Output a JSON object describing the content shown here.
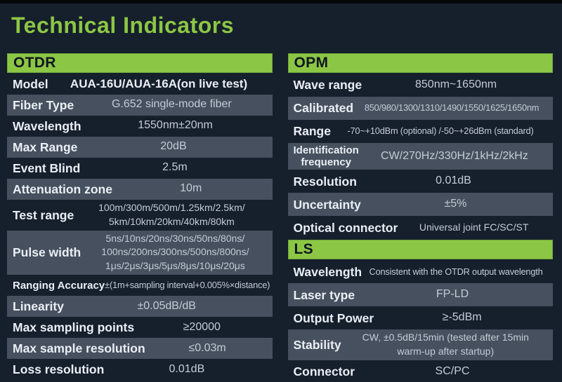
{
  "title": "Technical Indicators",
  "colors": {
    "background": "#161f2c",
    "top_edge": "#05070a",
    "accent_green": "#8cc645",
    "header_text": "#0e1620",
    "row_shaded": "#46505e",
    "label_text": "#eaeff5",
    "value_text": "#c3ccd7"
  },
  "columns": [
    {
      "name": "otdr",
      "blocks": [
        {
          "type": "header",
          "text": "OTDR"
        },
        {
          "type": "row",
          "label": "Model",
          "value": "AUA-16U/AUA-16A(on live test)",
          "shaded": false,
          "value_bold": true
        },
        {
          "type": "row",
          "label": "Fiber Type",
          "value": "G.652 single-mode fiber",
          "shaded": true
        },
        {
          "type": "row",
          "label": "Wavelength",
          "value": "1550nm±20nm",
          "shaded": false
        },
        {
          "type": "row",
          "label": "Max Range",
          "value": "20dB",
          "shaded": true
        },
        {
          "type": "row",
          "label": "Event Blind",
          "value": "2.5m",
          "shaded": false
        },
        {
          "type": "row",
          "label": "Attenuation zone",
          "value": "10m",
          "shaded": true
        },
        {
          "type": "row",
          "label": "Test range",
          "value": "100m/300m/500m/1.25km/2.5km/\n5km/10km/20km/40km/80km",
          "shaded": false,
          "value_size": "small"
        },
        {
          "type": "row",
          "label": "Pulse width",
          "value": "5ns/10ns/20ns/30ns/50ns/80ns/\n100ns/200ns/300ns/500ns/800ns/\n1μs/2μs/3μs/5μs/8μs/10μs/20μs",
          "shaded": true,
          "value_size": "small"
        },
        {
          "type": "row",
          "label": "Ranging Accuracy",
          "value": "±(1m+sampling interval+0.005%×distance)",
          "shaded": false,
          "label_size": "small",
          "value_size": "xsmall"
        },
        {
          "type": "row",
          "label": "Linearity",
          "value": "±0.05dB/dB",
          "shaded": true
        },
        {
          "type": "row",
          "label": "Max sampling points",
          "value": "≥20000",
          "shaded": false
        },
        {
          "type": "row",
          "label": "Max sample resolution",
          "value": "≤0.03m",
          "shaded": true
        },
        {
          "type": "row",
          "label": "Loss resolution",
          "value": "0.01dB",
          "shaded": false
        }
      ]
    },
    {
      "name": "opm-ls",
      "blocks": [
        {
          "type": "header",
          "text": "OPM"
        },
        {
          "type": "row",
          "label": "Wave range",
          "value": "850nm~1650nm",
          "shaded": false
        },
        {
          "type": "row",
          "label": "Calibrated",
          "value": "850/980/1300/1310/1490/1550/1625/1650nm",
          "shaded": true,
          "value_size": "xsmall"
        },
        {
          "type": "row",
          "label": "Range",
          "value": "-70~+10dBm (optional) /-50~+26dBm (standard)",
          "shaded": false,
          "value_size": "xsmall"
        },
        {
          "type": "row",
          "label": "Identification\nfrequency",
          "value": "CW/270Hz/330Hz/1kHz/2kHz",
          "shaded": true,
          "label_size": "small"
        },
        {
          "type": "row",
          "label": "Resolution",
          "value": "0.01dB",
          "shaded": false
        },
        {
          "type": "row",
          "label": "Uncertainty",
          "value": "±5%",
          "shaded": true
        },
        {
          "type": "row",
          "label": "Optical connector",
          "value": "Universal joint FC/SC/ST",
          "shaded": false,
          "value_size": "small"
        },
        {
          "type": "header",
          "text": "LS"
        },
        {
          "type": "row",
          "label": "Wavelength",
          "value": "Consistent with the OTDR output wavelength",
          "shaded": false,
          "value_size": "xsmall"
        },
        {
          "type": "row",
          "label": "Laser type",
          "value": "FP-LD",
          "shaded": true
        },
        {
          "type": "row",
          "label": "Output Power",
          "value": "≥-5dBm",
          "shaded": false
        },
        {
          "type": "row",
          "label": "Stability",
          "value": "CW, ±0.5dB/15min (tested after 15min\nwarm-up after startup)",
          "shaded": true,
          "value_size": "small"
        },
        {
          "type": "row",
          "label": "Connector",
          "value": "SC/PC",
          "shaded": false
        }
      ]
    }
  ]
}
